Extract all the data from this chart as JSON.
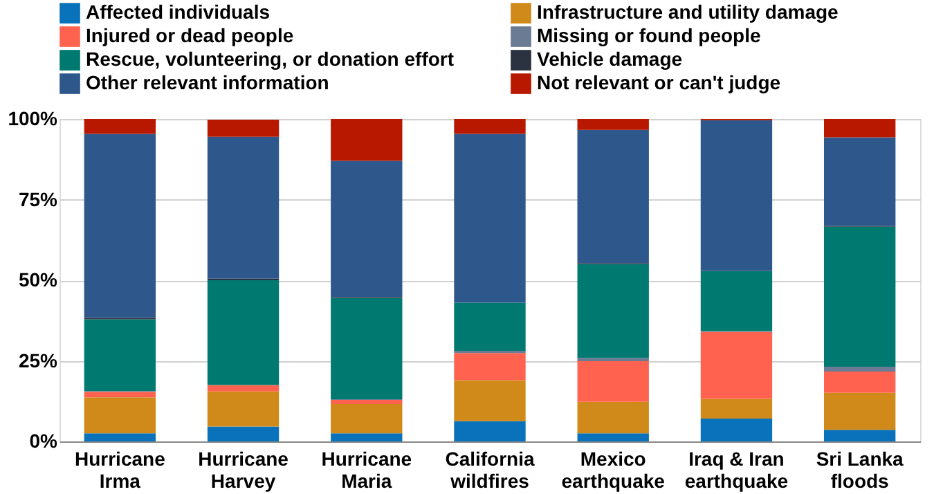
{
  "chart_data": {
    "type": "bar",
    "stacked": true,
    "categories": [
      "Hurricane Irma",
      "Hurricane Harvey",
      "Hurricane Maria",
      "California wildfires",
      "Mexico earthquake",
      "Iraq & Iran earthquake",
      "Sri Lanka floods"
    ],
    "series": [
      {
        "name": "Affected individuals",
        "color": "#0a72ba",
        "values": [
          2.5,
          4.6,
          2.5,
          6.3,
          2.5,
          7.1,
          3.6
        ]
      },
      {
        "name": "Infrastructure and utility damage",
        "color": "#d08a1a",
        "values": [
          11.2,
          10.9,
          9.1,
          12.7,
          9.8,
          6.1,
          11.5
        ]
      },
      {
        "name": "Injured or dead people",
        "color": "#ff6350",
        "values": [
          1.7,
          2.0,
          1.3,
          8.4,
          12.6,
          20.8,
          6.6
        ]
      },
      {
        "name": "Missing or found people",
        "color": "#6a7b93",
        "values": [
          0.2,
          null,
          0.2,
          0.7,
          1.0,
          0.2,
          1.5
        ]
      },
      {
        "name": "Rescue, volunteering, or donation effort",
        "color": "#007a70",
        "values": [
          22.3,
          32.5,
          31.4,
          14.9,
          29.1,
          18.6,
          43.4
        ]
      },
      {
        "name": "Vehicle damage",
        "color": "#2c3340",
        "values": [
          0.4,
          0.5,
          0.3,
          0.0,
          0.3,
          0.1,
          0.2
        ]
      },
      {
        "name": "Other relevant information",
        "color": "#2e578c",
        "values": [
          57.1,
          44.0,
          42.2,
          52.4,
          41.3,
          46.7,
          27.5
        ]
      },
      {
        "name": "Not relevant or can't judge",
        "color": "#b81800",
        "values": [
          4.6,
          5.3,
          13.0,
          4.6,
          3.4,
          0.4,
          5.7
        ]
      }
    ],
    "ylim": [
      0,
      100
    ],
    "yticks": [
      {
        "value": 0,
        "label": "0%"
      },
      {
        "value": 25,
        "label": "25%"
      },
      {
        "value": 50,
        "label": "50%"
      },
      {
        "value": 75,
        "label": "75%"
      },
      {
        "value": 100,
        "label": "100%"
      }
    ],
    "grid": "y",
    "legend": "top"
  }
}
